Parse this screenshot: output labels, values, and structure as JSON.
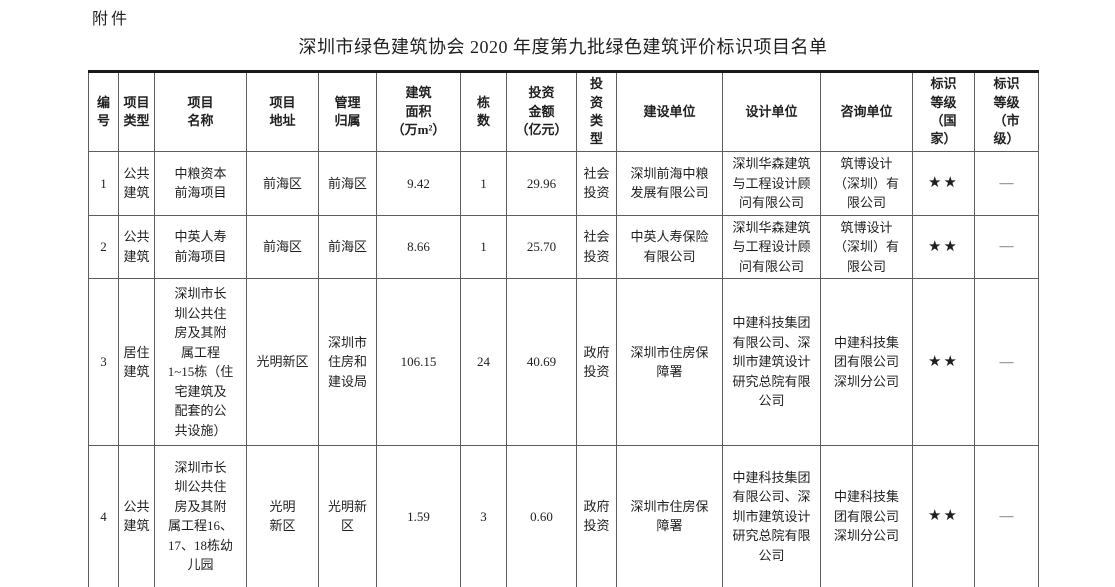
{
  "page": {
    "attachment_label": "附件",
    "title": "深圳市绿色建筑协会 2020 年度第九批绿色建筑评价标识项目名单"
  },
  "table": {
    "headers": [
      "编\n号",
      "项目\n类型",
      "项目\n名称",
      "项目\n地址",
      "管理\n归属",
      "建筑\n面积\n（万m²）",
      "栋\n数",
      "投资\n金额\n（亿元）",
      "投\n资\n类\n型",
      "建设单位",
      "设计单位",
      "咨询单位",
      "标识\n等级\n（国\n家）",
      "标识\n等级\n（市\n级）"
    ],
    "rows": [
      {
        "cells": [
          "1",
          "公共\n建筑",
          "中粮资本\n前海项目",
          "前海区",
          "前海区",
          "9.42",
          "1",
          "29.96",
          "社会\n投资",
          "深圳前海中粮\n发展有限公司",
          "深圳华森建筑\n与工程设计顾\n问有限公司",
          "筑博设计\n（深圳）有\n限公司",
          "★★",
          "—"
        ]
      },
      {
        "cells": [
          "2",
          "公共\n建筑",
          "中英人寿\n前海项目",
          "前海区",
          "前海区",
          "8.66",
          "1",
          "25.70",
          "社会\n投资",
          "中英人寿保险\n有限公司",
          "深圳华森建筑\n与工程设计顾\n问有限公司",
          "筑博设计\n（深圳）有\n限公司",
          "★★",
          "—"
        ]
      },
      {
        "cells": [
          "3",
          "居住\n建筑",
          "深圳市长\n圳公共住\n房及其附\n属工程\n1~15栋（住\n宅建筑及\n配套的公\n共设施）",
          "光明新区",
          "深圳市\n住房和\n建设局",
          "106.15",
          "24",
          "40.69",
          "政府\n投资",
          "深圳市住房保\n障署",
          "中建科技集团\n有限公司、深\n圳市建筑设计\n研究总院有限\n公司",
          "中建科技集\n团有限公司\n深圳分公司",
          "★★",
          "—"
        ]
      },
      {
        "cells": [
          "4",
          "公共\n建筑",
          "深圳市长\n圳公共住\n房及其附\n属工程16、\n17、18栋幼\n儿园",
          "光明\n新区",
          "光明新\n区",
          "1.59",
          "3",
          "0.60",
          "政府\n投资",
          "深圳市住房保\n障署",
          "中建科技集团\n有限公司、深\n圳市建筑设计\n研究总院有限\n公司",
          "中建科技集\n团有限公司\n深圳分公司",
          "★★",
          "—"
        ]
      }
    ]
  }
}
